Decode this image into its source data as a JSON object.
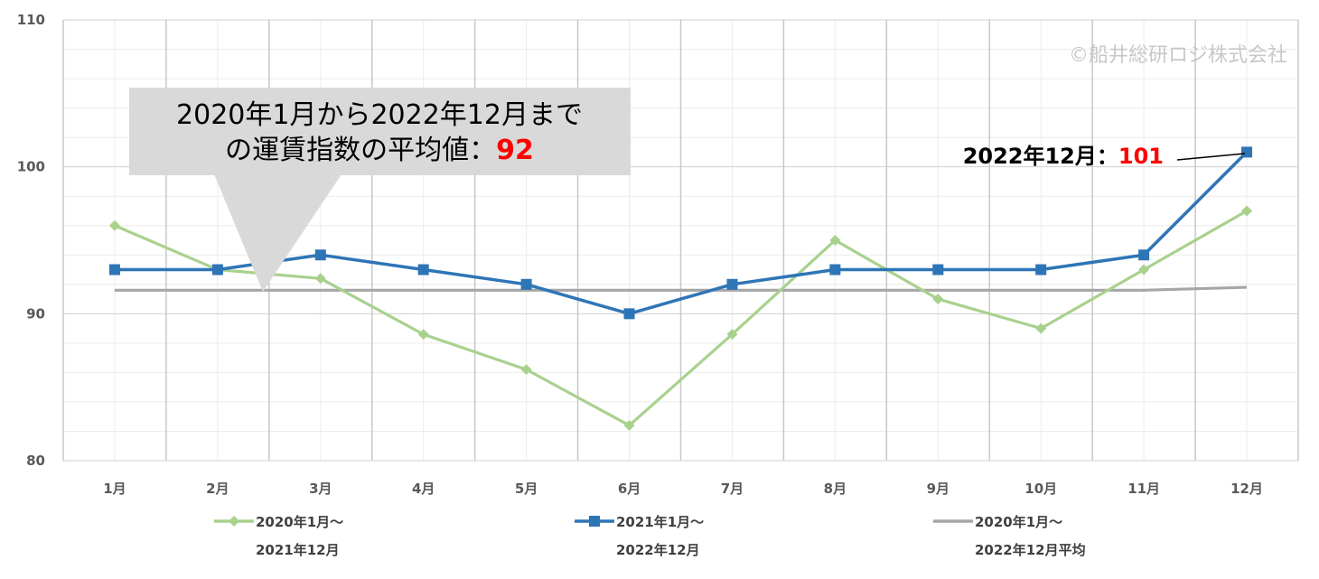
{
  "chart_data": {
    "type": "line",
    "categories": [
      "1月",
      "2月",
      "3月",
      "4月",
      "5月",
      "6月",
      "7月",
      "8月",
      "9月",
      "10月",
      "11月",
      "12月"
    ],
    "ylim": [
      80,
      110
    ],
    "yticks": [
      "80",
      "90",
      "100",
      "110"
    ],
    "grid": true,
    "legend_position": "bottom",
    "series": [
      {
        "name_line1": "2020年1月～",
        "name_line2": "2021年12月",
        "color": "#A9D18E",
        "marker": "diamond",
        "values": [
          96,
          93,
          92.4,
          88.6,
          86.2,
          82.4,
          88.6,
          95,
          91,
          89,
          93,
          97
        ]
      },
      {
        "name_line1": "2021年1月～",
        "name_line2": "2022年12月",
        "color": "#2E75B6",
        "marker": "square",
        "values": [
          93,
          93,
          94,
          93,
          92,
          90,
          92,
          93,
          93,
          93,
          94,
          101
        ]
      },
      {
        "name_line1": "2020年1月～",
        "name_line2": "2022年12月平均",
        "color": "#A6A6A6",
        "marker": "none",
        "values": [
          91.6,
          91.6,
          91.6,
          91.6,
          91.6,
          91.6,
          91.6,
          91.6,
          91.6,
          91.6,
          91.6,
          91.8
        ]
      }
    ]
  },
  "copyright": "©船井総研ロジ株式会社",
  "callout": {
    "line1": "2020年1月から2022年12月まで",
    "line2": "の運賃指数の平均値：",
    "value": "92"
  },
  "annotation": {
    "label": "2022年12月：",
    "value": "101"
  }
}
